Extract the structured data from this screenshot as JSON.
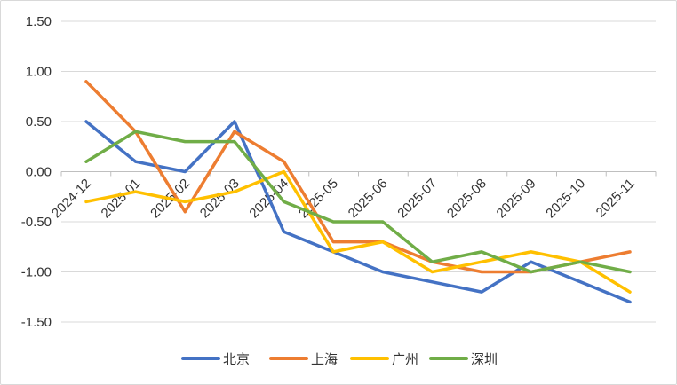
{
  "chart_data": {
    "type": "line",
    "title": "",
    "xlabel": "",
    "ylabel": "",
    "ylim": [
      -1.5,
      1.5
    ],
    "yticks": [
      1.5,
      1.0,
      0.5,
      0.0,
      -0.5,
      -1.0,
      -1.5
    ],
    "ytick_labels": [
      "1.50",
      "1.00",
      "0.50",
      "0.00",
      "-0.50",
      "-1.00",
      "-1.50"
    ],
    "grid": true,
    "legend_position": "bottom",
    "categories": [
      "2024-12",
      "2025-01",
      "2025-02",
      "2025-03",
      "2025-04",
      "2025-05",
      "2025-06",
      "2025-07",
      "2025-08",
      "2025-09",
      "2025-10",
      "2025-11"
    ],
    "x_tick_labels": [
      "2024-12",
      "2025-01",
      "2025-02",
      "2025-03",
      "2025-04",
      "2025-05",
      "2025-06",
      "2025-07",
      "2025-08",
      "2025-09",
      "2025-10",
      "2025-11"
    ],
    "series": [
      {
        "name": "北京",
        "color": "#4472C4",
        "values": [
          0.5,
          0.1,
          0.0,
          0.5,
          -0.6,
          -0.8,
          -1.0,
          -1.1,
          -1.2,
          -0.9,
          -1.1,
          -1.3
        ]
      },
      {
        "name": "上海",
        "color": "#ED7D31",
        "values": [
          0.9,
          0.4,
          -0.4,
          0.4,
          0.1,
          -0.7,
          -0.7,
          -0.9,
          -1.0,
          -1.0,
          -0.9,
          -0.8
        ]
      },
      {
        "name": "广州",
        "color": "#FFC000",
        "values": [
          -0.3,
          -0.2,
          -0.3,
          -0.2,
          0.0,
          -0.8,
          -0.7,
          -1.0,
          -0.9,
          -0.8,
          -0.9,
          -1.2
        ]
      },
      {
        "name": "深圳",
        "color": "#70AD47",
        "values": [
          0.1,
          0.4,
          0.3,
          0.3,
          -0.3,
          -0.5,
          -0.5,
          -0.9,
          -0.8,
          -1.0,
          -0.9,
          -1.0
        ]
      }
    ]
  }
}
